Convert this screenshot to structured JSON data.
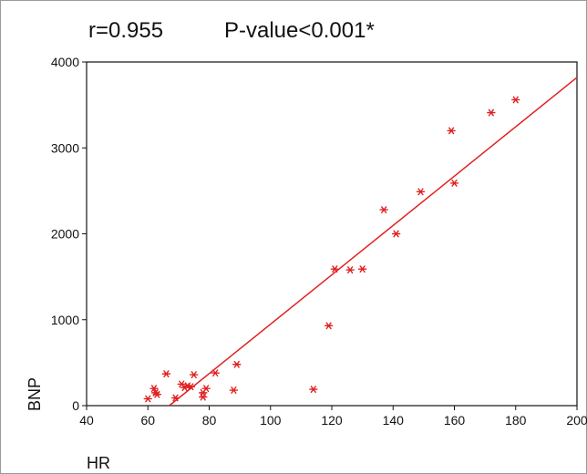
{
  "stats": {
    "r": "r=0.955",
    "p": "P-value<0.001*"
  },
  "chart_data": {
    "type": "scatter",
    "xlabel": "HR",
    "ylabel": "BNP",
    "xlim": [
      40,
      200
    ],
    "ylim": [
      0,
      4000
    ],
    "xticks": [
      40,
      60,
      80,
      100,
      120,
      140,
      160,
      180,
      200
    ],
    "yticks": [
      0,
      1000,
      2000,
      3000,
      4000
    ],
    "grid": false,
    "marker": "asterisk",
    "color": "#e02020",
    "points": [
      {
        "x": 60,
        "y": 80
      },
      {
        "x": 62,
        "y": 200
      },
      {
        "x": 62.5,
        "y": 150
      },
      {
        "x": 63,
        "y": 130
      },
      {
        "x": 66,
        "y": 370
      },
      {
        "x": 69,
        "y": 90
      },
      {
        "x": 71,
        "y": 250
      },
      {
        "x": 72,
        "y": 210
      },
      {
        "x": 73,
        "y": 230
      },
      {
        "x": 74,
        "y": 220
      },
      {
        "x": 75,
        "y": 360
      },
      {
        "x": 78,
        "y": 100
      },
      {
        "x": 78,
        "y": 150
      },
      {
        "x": 79,
        "y": 200
      },
      {
        "x": 82,
        "y": 380
      },
      {
        "x": 88,
        "y": 180
      },
      {
        "x": 89,
        "y": 480
      },
      {
        "x": 114,
        "y": 190
      },
      {
        "x": 119,
        "y": 930
      },
      {
        "x": 121,
        "y": 1590
      },
      {
        "x": 126,
        "y": 1580
      },
      {
        "x": 130,
        "y": 1590
      },
      {
        "x": 137,
        "y": 2280
      },
      {
        "x": 141,
        "y": 2000
      },
      {
        "x": 149,
        "y": 2490
      },
      {
        "x": 159,
        "y": 3200
      },
      {
        "x": 160,
        "y": 2590
      },
      {
        "x": 172,
        "y": 3410
      },
      {
        "x": 180,
        "y": 3560
      }
    ],
    "fit_line": {
      "from": {
        "x": 67,
        "y": 0
      },
      "to": {
        "x": 200,
        "y": 3820
      },
      "color": "#e02020"
    }
  }
}
